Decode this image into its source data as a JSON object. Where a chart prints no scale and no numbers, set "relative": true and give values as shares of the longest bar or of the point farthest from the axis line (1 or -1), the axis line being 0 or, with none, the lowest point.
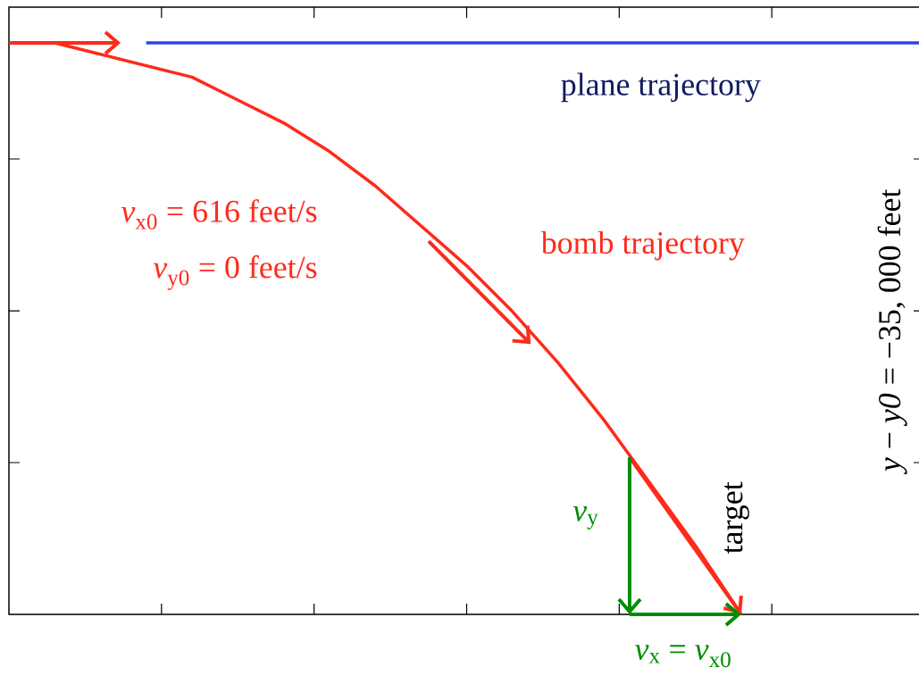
{
  "chart_data": {
    "type": "line",
    "relative": true,
    "grid": false,
    "marker": "none",
    "categories": [
      null,
      null,
      null,
      null,
      null,
      null,
      null,
      null,
      null,
      null,
      null,
      null,
      null,
      null,
      null,
      null,
      null,
      null,
      null,
      null,
      null
    ],
    "series": [
      {
        "name": "plane trajectory",
        "color": "#2a44f0",
        "values": [
          null,
          null,
          null,
          1,
          1,
          1,
          1,
          1,
          1,
          1,
          1,
          1,
          1,
          1,
          1,
          1,
          1,
          1,
          1,
          1,
          1
        ]
      },
      {
        "name": "bomb trajectory",
        "color": "#ff2a1a",
        "values": [
          1,
          1,
          0.98,
          0.96,
          0.94,
          0.9,
          0.86,
          0.81,
          0.75,
          0.68,
          0.61,
          0.53,
          0.44,
          0.34,
          0.23,
          0.12,
          0,
          null,
          null,
          null,
          null
        ]
      }
    ],
    "annotations": [
      "*v*$_{x0}$ = 616 feet/s",
      "*v*$_{y0}$ = 0 feet/s",
      "*v*$_{y}$",
      "target",
      "*v*$_{x}$ = *v*$_{x0}$",
      "*y* − *y0* = −35, 000 feet"
    ]
  }
}
